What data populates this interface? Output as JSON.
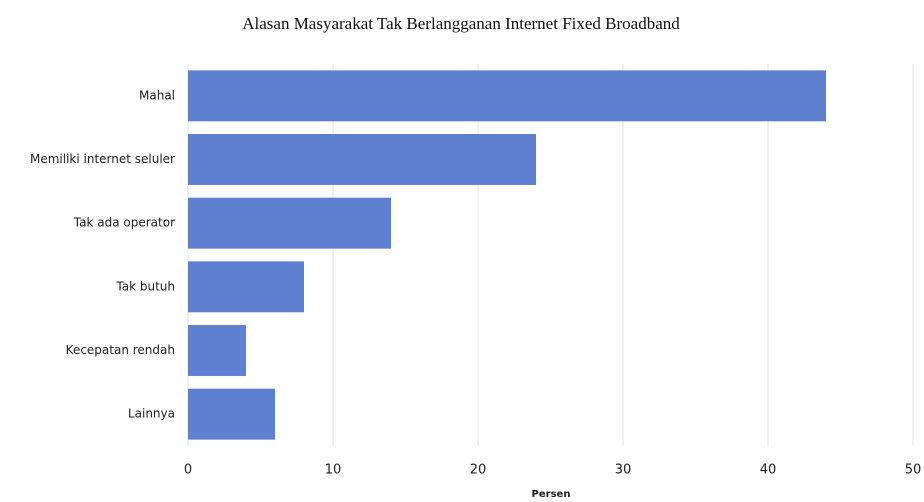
{
  "chart_data": {
    "type": "bar",
    "orientation": "horizontal",
    "title": "Alasan Masyarakat Tak Berlangganan Internet Fixed Broadband",
    "categories": [
      "Mahal",
      "Memiliki internet seluler",
      "Tak ada operator",
      "Tak butuh",
      "Kecepatan rendah",
      "Lainnya"
    ],
    "values": [
      44,
      24,
      14,
      8,
      4,
      6
    ],
    "color": "#5f7fd0",
    "xlabel": "Persen",
    "xlim": [
      0,
      50
    ],
    "xticks": [
      0,
      10,
      20,
      30,
      40,
      50
    ],
    "grid": true
  }
}
